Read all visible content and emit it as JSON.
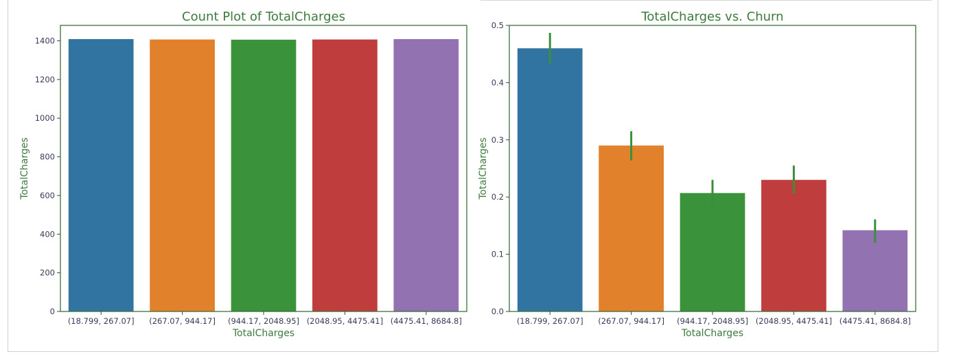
{
  "chart_data": [
    {
      "type": "bar",
      "title": "Count Plot of TotalCharges",
      "xlabel": "TotalCharges",
      "ylabel": "TotalCharges",
      "categories": [
        "(18.799, 267.07]",
        "(267.07, 944.17]",
        "(944.17, 2048.95]",
        "(2048.95, 4475.41]",
        "(4475.41, 8684.8]"
      ],
      "values": [
        1409,
        1407,
        1406,
        1407,
        1409
      ],
      "colors": [
        "#3274a1",
        "#e1812c",
        "#3a923a",
        "#c03d3e",
        "#9372b2"
      ],
      "ylim": [
        0,
        1480
      ],
      "yticks": [
        0,
        200,
        400,
        600,
        800,
        1000,
        1200,
        1400
      ],
      "grid": false
    },
    {
      "type": "bar",
      "title": "TotalCharges vs. Churn",
      "xlabel": "TotalCharges",
      "ylabel": "TotalCharges",
      "categories": [
        "(18.799, 267.07]",
        "(267.07, 944.17]",
        "(944.17, 2048.95]",
        "(2048.95, 4475.41]",
        "(4475.41, 8684.8]"
      ],
      "values": [
        0.46,
        0.29,
        0.207,
        0.23,
        0.142
      ],
      "error_low": [
        0.432,
        0.264,
        0.185,
        0.206,
        0.12
      ],
      "error_high": [
        0.487,
        0.315,
        0.23,
        0.255,
        0.161
      ],
      "colors": [
        "#3274a1",
        "#e1812c",
        "#3a923a",
        "#c03d3e",
        "#9372b2"
      ],
      "error_color": "#3a8f3a",
      "ylim": [
        0,
        0.5
      ],
      "yticks": [
        "0.0",
        "0.1",
        "0.2",
        "0.3",
        "0.4",
        "0.5"
      ],
      "grid": false
    }
  ],
  "frame_color": "#3d6e3d"
}
